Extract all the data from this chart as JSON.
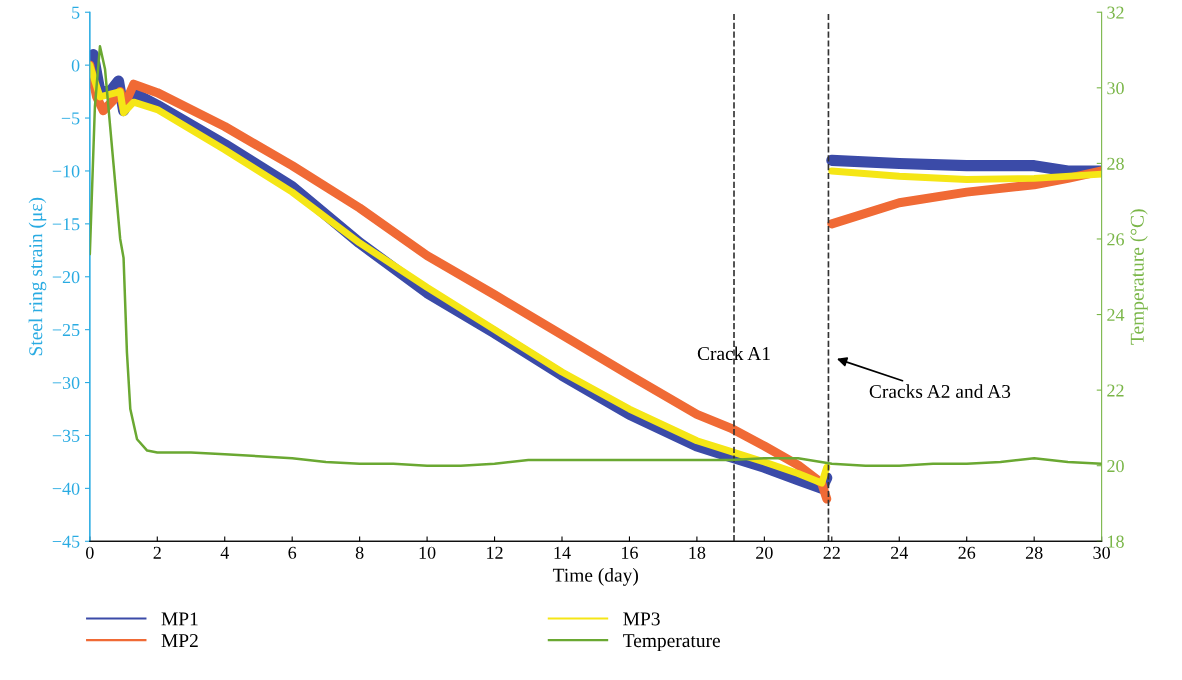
{
  "chart_data": {
    "type": "line",
    "xlabel": "Time (day)",
    "ylabel": "Steel ring strain (με)",
    "y2label": "Temperature (°C)",
    "xlim": [
      0,
      30
    ],
    "xticks": [
      0,
      2,
      4,
      6,
      8,
      10,
      12,
      14,
      16,
      18,
      20,
      22,
      24,
      26,
      28,
      30
    ],
    "ylim": [
      -45,
      5
    ],
    "yticks": [
      -45,
      -40,
      -35,
      -30,
      -25,
      -20,
      -15,
      -10,
      -5,
      0,
      5
    ],
    "y2lim": [
      18,
      32
    ],
    "y2ticks": [
      18,
      20,
      22,
      24,
      26,
      28,
      30,
      32
    ],
    "grid": false,
    "legend": "bottom",
    "line_style": "solid",
    "marker": "none",
    "series": [
      {
        "name": "MP1",
        "color": "#3b4ba8",
        "x": [
          0,
          0.1,
          0.3,
          0.6,
          0.85,
          1.0,
          1.2,
          1.4,
          2,
          4,
          6,
          8,
          10,
          12,
          14,
          16,
          18,
          19,
          20,
          21,
          21.7,
          21.85,
          21.9,
          22,
          24,
          26,
          28,
          29,
          30
        ],
        "values": [
          0,
          1,
          -2.5,
          -2.5,
          -1.5,
          -4.3,
          -3,
          -2.8,
          -3.8,
          -7.5,
          -11.5,
          -16.8,
          -21.5,
          -25.3,
          -29.3,
          -33,
          -36,
          -37,
          -38,
          -39.2,
          -40,
          -39,
          null,
          -9,
          -9.3,
          -9.5,
          -9.5,
          -10,
          -10
        ]
      },
      {
        "name": "MP2",
        "color": "#f06a35",
        "x": [
          0,
          0.2,
          0.4,
          0.7,
          0.9,
          1.0,
          1.3,
          2,
          4,
          6,
          8,
          10,
          12,
          14,
          16,
          18,
          19,
          20,
          21,
          21.7,
          21.85,
          21.9,
          22,
          24,
          26,
          28,
          29,
          30
        ],
        "values": [
          0,
          -3,
          -4.3,
          -3.3,
          -2.5,
          -4,
          -1.8,
          -2.6,
          -5.8,
          -9.5,
          -13.5,
          -18,
          -21.7,
          -25.5,
          -29.3,
          -33,
          -34.3,
          -36,
          -37.8,
          -39.5,
          -41,
          null,
          -15,
          -13,
          -12,
          -11.3,
          -10.7,
          -10
        ]
      },
      {
        "name": "MP3",
        "color": "#f5e616",
        "x": [
          0,
          0.3,
          0.9,
          1.0,
          1.3,
          2,
          4,
          6,
          8,
          10,
          12,
          14,
          16,
          18,
          19,
          20,
          21,
          21.7,
          21.85,
          21.9,
          22,
          24,
          26,
          28,
          30
        ],
        "values": [
          0,
          -3,
          -2.5,
          -4.5,
          -3.5,
          -4.2,
          -8,
          -12,
          -16.8,
          -21,
          -25,
          -29,
          -32.5,
          -35.5,
          -36.5,
          -37.5,
          -38.6,
          -39.5,
          -38,
          null,
          -10,
          -10.5,
          -10.8,
          -10.7,
          -10.3
        ]
      },
      {
        "name": "Temperature",
        "color": "#6aa832",
        "axis": "y2",
        "x": [
          0,
          0.15,
          0.3,
          0.45,
          0.7,
          0.9,
          1.0,
          1.1,
          1.2,
          1.4,
          1.7,
          2,
          3,
          4,
          5,
          6,
          7,
          8,
          9,
          10,
          11,
          12,
          13,
          14,
          16,
          18,
          19,
          20,
          21,
          22,
          23,
          24,
          25,
          26,
          27,
          28,
          29,
          30
        ],
        "values": [
          25.6,
          29.5,
          31.1,
          30.5,
          28,
          26,
          25.5,
          23,
          21.5,
          20.7,
          20.4,
          20.35,
          20.35,
          20.3,
          20.25,
          20.2,
          20.1,
          20.05,
          20.05,
          20,
          20,
          20.05,
          20.15,
          20.15,
          20.15,
          20.15,
          20.15,
          20.2,
          20.2,
          20.05,
          20,
          20,
          20.05,
          20.05,
          20.1,
          20.2,
          20.1,
          20.05
        ]
      }
    ],
    "ref_lines": [
      {
        "axis": "x",
        "value": 19.1,
        "color": "#333333",
        "line_style": "dashed"
      },
      {
        "axis": "x",
        "value": 21.9,
        "color": "#333333",
        "line_style": "dashed"
      }
    ],
    "annotations": [
      "Crack A1",
      "Cracks A2 and A3"
    ]
  }
}
